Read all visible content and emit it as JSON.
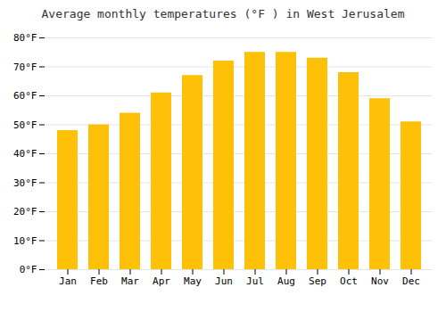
{
  "chart_data": {
    "type": "bar",
    "title": "Average monthly temperatures (°F ) in West Jerusalem",
    "categories": [
      "Jan",
      "Feb",
      "Mar",
      "Apr",
      "May",
      "Jun",
      "Jul",
      "Aug",
      "Sep",
      "Oct",
      "Nov",
      "Dec"
    ],
    "values": [
      48,
      50,
      54,
      61,
      67,
      72,
      75,
      75,
      73,
      68,
      59,
      51
    ],
    "color": "#FFC107",
    "ylim": [
      0,
      80
    ],
    "yticks": [
      {
        "value": 0,
        "label": "0°F"
      },
      {
        "value": 10,
        "label": "10°F"
      },
      {
        "value": 20,
        "label": "20°F"
      },
      {
        "value": 30,
        "label": "30°F"
      },
      {
        "value": 40,
        "label": "40°F"
      },
      {
        "value": 50,
        "label": "50°F"
      },
      {
        "value": 60,
        "label": "60°F"
      },
      {
        "value": 70,
        "label": "70°F"
      },
      {
        "value": 80,
        "label": "80°F"
      }
    ],
    "grid": true
  }
}
